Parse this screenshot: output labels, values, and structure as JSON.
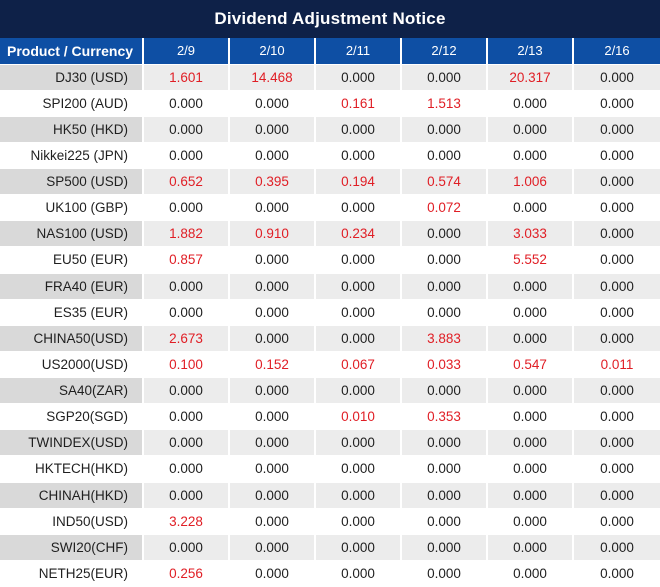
{
  "title": "Dividend Adjustment Notice",
  "colors": {
    "title_bg": "#0e2148",
    "header_bg": "#0e4fa4",
    "alt_label_bg": "#d9d9d9",
    "alt_row_bg": "#ececec",
    "plain_row_bg": "#ffffff",
    "value_red": "#e01e25",
    "value_black": "#1f1f1f",
    "header_text": "#ffffff"
  },
  "chart_data": {
    "type": "table",
    "title": "Dividend Adjustment Notice",
    "label_header": "Product / Currency",
    "date_headers": [
      "2/9",
      "2/10",
      "2/11",
      "2/12",
      "2/13",
      "2/16"
    ],
    "rows": [
      {
        "product": "DJ30 (USD)",
        "values": [
          "1.601",
          "14.468",
          "0.000",
          "0.000",
          "20.317",
          "0.000"
        ]
      },
      {
        "product": "SPI200 (AUD)",
        "values": [
          "0.000",
          "0.000",
          "0.161",
          "1.513",
          "0.000",
          "0.000"
        ]
      },
      {
        "product": "HK50 (HKD)",
        "values": [
          "0.000",
          "0.000",
          "0.000",
          "0.000",
          "0.000",
          "0.000"
        ]
      },
      {
        "product": "Nikkei225 (JPN)",
        "values": [
          "0.000",
          "0.000",
          "0.000",
          "0.000",
          "0.000",
          "0.000"
        ]
      },
      {
        "product": "SP500 (USD)",
        "values": [
          "0.652",
          "0.395",
          "0.194",
          "0.574",
          "1.006",
          "0.000"
        ]
      },
      {
        "product": "UK100 (GBP)",
        "values": [
          "0.000",
          "0.000",
          "0.000",
          "0.072",
          "0.000",
          "0.000"
        ]
      },
      {
        "product": "NAS100 (USD)",
        "values": [
          "1.882",
          "0.910",
          "0.234",
          "0.000",
          "3.033",
          "0.000"
        ]
      },
      {
        "product": "EU50 (EUR)",
        "values": [
          "0.857",
          "0.000",
          "0.000",
          "0.000",
          "5.552",
          "0.000"
        ]
      },
      {
        "product": "FRA40 (EUR)",
        "values": [
          "0.000",
          "0.000",
          "0.000",
          "0.000",
          "0.000",
          "0.000"
        ]
      },
      {
        "product": "ES35 (EUR)",
        "values": [
          "0.000",
          "0.000",
          "0.000",
          "0.000",
          "0.000",
          "0.000"
        ]
      },
      {
        "product": "CHINA50(USD)",
        "values": [
          "2.673",
          "0.000",
          "0.000",
          "3.883",
          "0.000",
          "0.000"
        ]
      },
      {
        "product": "US2000(USD)",
        "values": [
          "0.100",
          "0.152",
          "0.067",
          "0.033",
          "0.547",
          "0.011"
        ]
      },
      {
        "product": "SA40(ZAR)",
        "values": [
          "0.000",
          "0.000",
          "0.000",
          "0.000",
          "0.000",
          "0.000"
        ]
      },
      {
        "product": "SGP20(SGD)",
        "values": [
          "0.000",
          "0.000",
          "0.010",
          "0.353",
          "0.000",
          "0.000"
        ]
      },
      {
        "product": "TWINDEX(USD)",
        "values": [
          "0.000",
          "0.000",
          "0.000",
          "0.000",
          "0.000",
          "0.000"
        ]
      },
      {
        "product": "HKTECH(HKD)",
        "values": [
          "0.000",
          "0.000",
          "0.000",
          "0.000",
          "0.000",
          "0.000"
        ]
      },
      {
        "product": "CHINAH(HKD)",
        "values": [
          "0.000",
          "0.000",
          "0.000",
          "0.000",
          "0.000",
          "0.000"
        ]
      },
      {
        "product": "IND50(USD)",
        "values": [
          "3.228",
          "0.000",
          "0.000",
          "0.000",
          "0.000",
          "0.000"
        ]
      },
      {
        "product": "SWI20(CHF)",
        "values": [
          "0.000",
          "0.000",
          "0.000",
          "0.000",
          "0.000",
          "0.000"
        ]
      },
      {
        "product": "NETH25(EUR)",
        "values": [
          "0.256",
          "0.000",
          "0.000",
          "0.000",
          "0.000",
          "0.000"
        ]
      }
    ]
  }
}
